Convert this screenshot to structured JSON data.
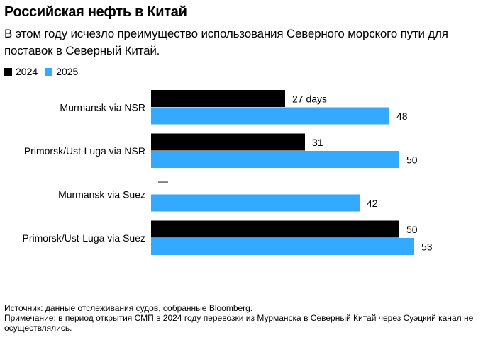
{
  "title": "Российская нефть в Китай",
  "subtitle": "В этом году исчезло преимущество использования Северного морского пути для поставок в Северный Китай.",
  "legend": [
    {
      "label": "2024",
      "color": "#000000"
    },
    {
      "label": "2025",
      "color": "#33aaff"
    }
  ],
  "source": "Источник: данные отслеживания судов, собранные Bloomberg.",
  "note": "Примечание: в период открытия СМП в 2024 году перевозки из Мурманска в Северный Китай через Суэцкий канал не осуществлялись.",
  "chart_data": {
    "type": "bar",
    "orientation": "horizontal",
    "categories": [
      "Murmansk via NSR",
      "Primorsk/Ust-Luga via NSR",
      "Murmansk via Suez",
      "Primorsk/Ust-Luga via Suez"
    ],
    "series": [
      {
        "name": "2024",
        "color": "#000000",
        "values": [
          27,
          31,
          null,
          50
        ],
        "labels": [
          "27 days",
          "31",
          "—",
          "50"
        ]
      },
      {
        "name": "2025",
        "color": "#33aaff",
        "values": [
          48,
          50,
          42,
          53
        ],
        "labels": [
          "48",
          "50",
          "42",
          "53"
        ]
      }
    ],
    "xlim": [
      0,
      53
    ],
    "grid": false,
    "legend_position": "top-left"
  }
}
